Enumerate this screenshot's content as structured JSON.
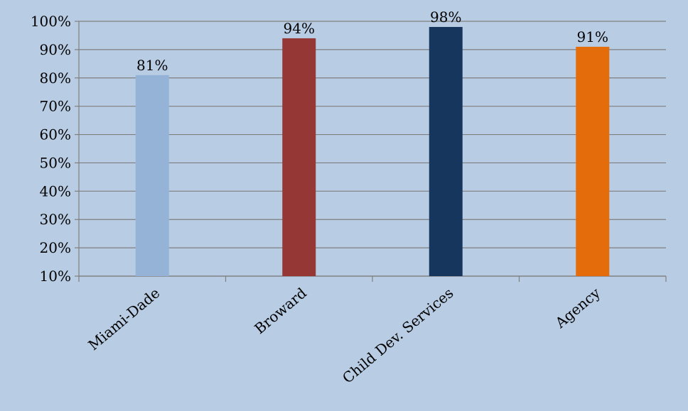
{
  "chart_data": {
    "type": "bar",
    "title": "",
    "xlabel": "",
    "ylabel": "",
    "categories": [
      "Miami-Dade",
      "Broward",
      "Child Dev. Services",
      "Agency"
    ],
    "values": [
      81,
      94,
      98,
      91
    ],
    "data_labels": [
      "81%",
      "94%",
      "98%",
      "91%"
    ],
    "colors": [
      "#95b3d7",
      "#953735",
      "#17365d",
      "#e46c0a"
    ],
    "ylim": [
      10,
      100
    ],
    "yticks": [
      10,
      20,
      30,
      40,
      50,
      60,
      70,
      80,
      90,
      100
    ],
    "ytick_labels": [
      "10%",
      "20%",
      "30%",
      "40%",
      "50%",
      "60%",
      "70%",
      "80%",
      "90%",
      "100%"
    ],
    "grid": true,
    "legend": "none",
    "background": "#b8cce4",
    "gridline_color": "#7f7f7f"
  }
}
